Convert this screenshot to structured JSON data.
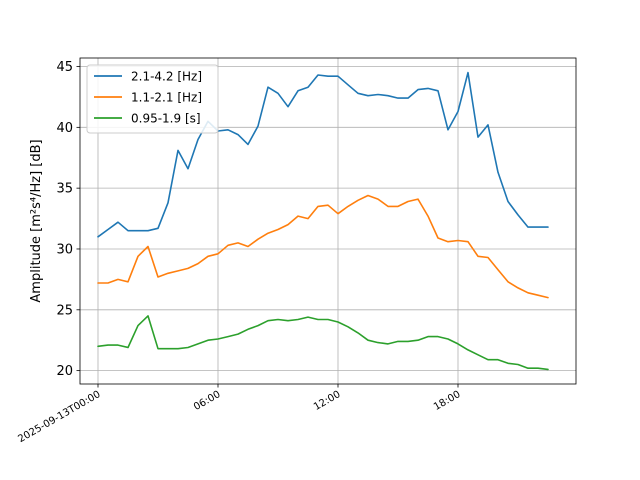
{
  "chart_data": {
    "type": "line",
    "title": "",
    "xlabel": "",
    "ylabel": "Amplitude [m²s⁴/Hz] [dB]",
    "x_unit": "hours",
    "xlim": [
      -0.9,
      23.9
    ],
    "ylim": [
      18.9,
      45.7
    ],
    "x_ticks": [
      {
        "value": 0,
        "label": "2025-09-13T00:00"
      },
      {
        "value": 6,
        "label": "06:00"
      },
      {
        "value": 12,
        "label": "12:00"
      },
      {
        "value": 18,
        "label": "18:00"
      }
    ],
    "y_ticks": [
      20,
      25,
      30,
      35,
      40,
      45
    ],
    "grid": true,
    "legend_position": "top-left",
    "x": [
      0,
      0.5,
      1,
      1.5,
      2,
      2.5,
      3,
      3.5,
      4,
      4.5,
      5,
      5.5,
      6,
      6.5,
      7,
      7.5,
      8,
      8.5,
      9,
      9.5,
      10,
      10.5,
      11,
      11.5,
      12,
      12.5,
      13,
      13.5,
      14,
      14.5,
      15,
      15.5,
      16,
      16.5,
      17,
      17.5,
      18,
      18.5,
      19,
      19.5,
      20,
      20.5,
      21,
      21.5,
      22,
      22.5
    ],
    "series": [
      {
        "name": "2.1-4.2 [Hz]",
        "color": "#1f77b4",
        "values": [
          31.0,
          31.6,
          32.2,
          31.5,
          31.5,
          31.5,
          31.7,
          33.8,
          38.1,
          36.6,
          39.0,
          40.5,
          39.7,
          39.8,
          39.4,
          38.6,
          40.1,
          43.3,
          42.8,
          41.7,
          43.0,
          43.3,
          44.3,
          44.2,
          44.2,
          43.5,
          42.8,
          42.6,
          42.7,
          42.6,
          42.4,
          42.4,
          43.1,
          43.2,
          43.0,
          39.8,
          41.3,
          44.5,
          39.2,
          40.2,
          36.3,
          33.9,
          32.8,
          31.8,
          31.8,
          31.8
        ]
      },
      {
        "name": "1.1-2.1 [Hz]",
        "color": "#ff7f0e",
        "values": [
          27.2,
          27.2,
          27.5,
          27.3,
          29.4,
          30.2,
          27.7,
          28.0,
          28.2,
          28.4,
          28.8,
          29.4,
          29.6,
          30.3,
          30.5,
          30.2,
          30.8,
          31.3,
          31.6,
          32.0,
          32.7,
          32.5,
          33.5,
          33.6,
          32.9,
          33.5,
          34.0,
          34.4,
          34.1,
          33.5,
          33.5,
          33.9,
          34.1,
          32.7,
          30.9,
          30.6,
          30.7,
          30.6,
          29.4,
          29.3,
          28.3,
          27.3,
          26.8,
          26.4,
          26.2,
          26.0
        ]
      },
      {
        "name": "0.95-1.9 [s]",
        "color": "#2ca02c",
        "values": [
          22.0,
          22.1,
          22.1,
          21.9,
          23.7,
          24.5,
          21.8,
          21.8,
          21.8,
          21.9,
          22.2,
          22.5,
          22.6,
          22.8,
          23.0,
          23.4,
          23.7,
          24.1,
          24.2,
          24.1,
          24.2,
          24.4,
          24.2,
          24.2,
          24.0,
          23.6,
          23.1,
          22.5,
          22.3,
          22.2,
          22.4,
          22.4,
          22.5,
          22.8,
          22.8,
          22.6,
          22.2,
          21.7,
          21.3,
          20.9,
          20.9,
          20.6,
          20.5,
          20.2,
          20.2,
          20.1
        ]
      }
    ]
  }
}
